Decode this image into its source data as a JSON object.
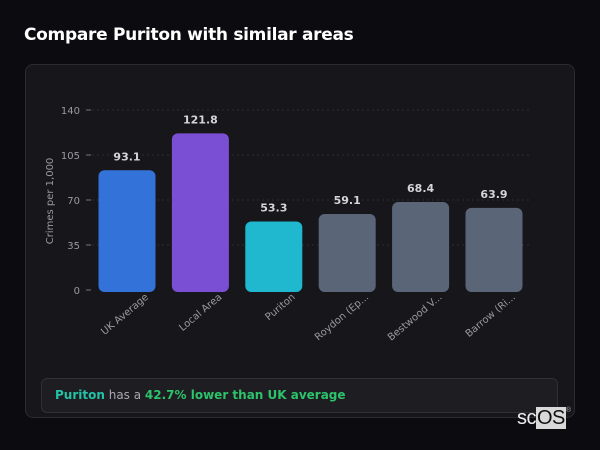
{
  "title": "Compare Puriton with similar areas",
  "chart_data": {
    "type": "bar",
    "categories": [
      "UK Average",
      "Local Area",
      "Puriton",
      "Roydon (Ep...",
      "Bestwood V...",
      "Barrow (Ri..."
    ],
    "values": [
      93.1,
      121.8,
      53.3,
      59.1,
      68.4,
      63.9
    ],
    "value_labels": [
      "93.1",
      "121.8",
      "53.3",
      "59.1",
      "68.4",
      "63.9"
    ],
    "colors": [
      "#3373d9",
      "#7b4fd4",
      "#1fb8cf",
      "#5a6678",
      "#5a6678",
      "#5a6678"
    ],
    "ylabel": "Crimes per 1,000",
    "xlabel": "",
    "ylim": [
      0,
      140
    ],
    "yticks": [
      0,
      35,
      70,
      105,
      140
    ],
    "grid": true
  },
  "summary": {
    "place": "Puriton",
    "middle": " has a ",
    "highlight": "42.7% lower than UK average"
  },
  "logo": {
    "text_a": "sc",
    "text_b": "OS",
    "mark": "®"
  }
}
